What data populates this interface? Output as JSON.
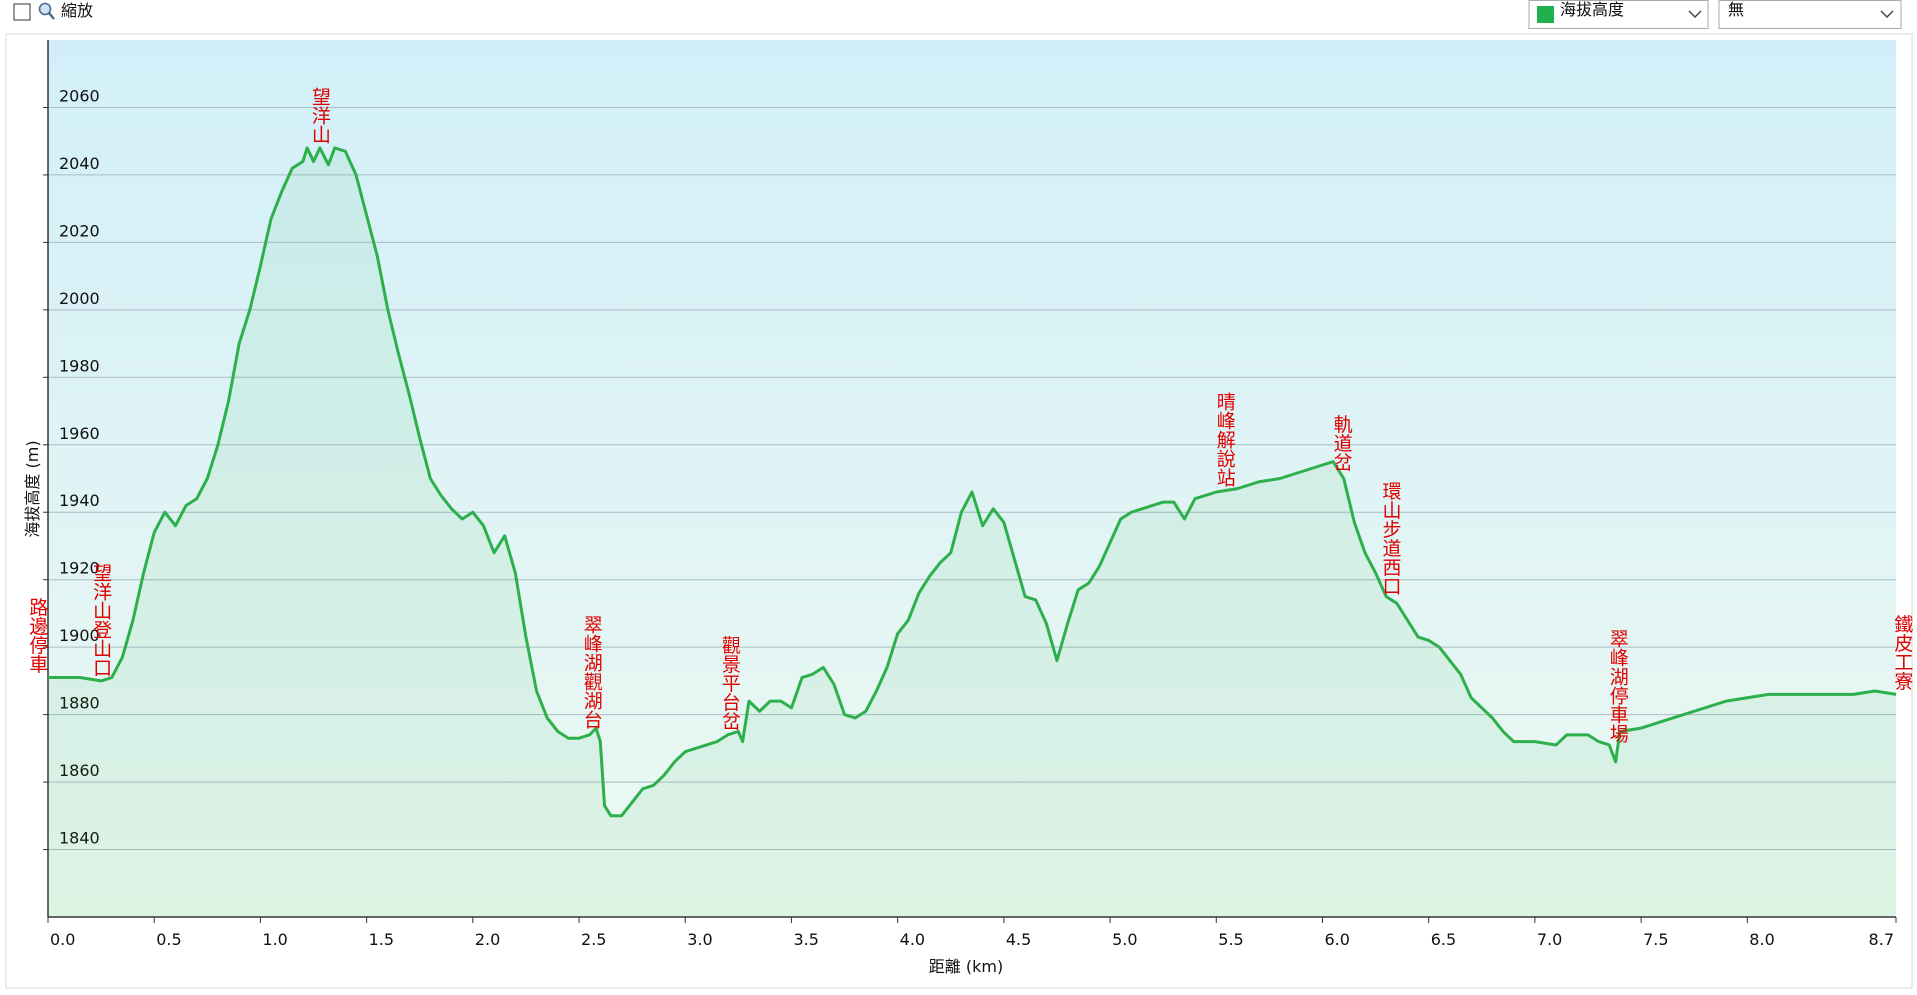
{
  "ui": {
    "zoom_label": "縮放",
    "overlay_select": "無"
  },
  "chart_data": {
    "type": "line",
    "xlabel": "距離 (km)",
    "ylabel": "海拔高度 (m)",
    "xlim": [
      0,
      8.7
    ],
    "ylim": [
      1820,
      2080
    ],
    "xticks": [
      {
        "value": 0,
        "label": "0.0"
      },
      0.5,
      {
        "value": 1,
        "label": "1.0"
      },
      1.5,
      {
        "value": 2,
        "label": "2.0"
      },
      2.5,
      {
        "value": 3,
        "label": "3.0"
      },
      3.5,
      {
        "value": 4,
        "label": "4.0"
      },
      4.5,
      {
        "value": 5,
        "label": "5.0"
      },
      5.5,
      {
        "value": 6,
        "label": "6.0"
      },
      6.5,
      {
        "value": 7,
        "label": "7.0"
      },
      7.5,
      {
        "value": 8,
        "label": "8.0"
      },
      8.7
    ],
    "yticks": [
      1840,
      1860,
      1880,
      1900,
      1920,
      1940,
      1960,
      1980,
      2000,
      2020,
      2040,
      2060
    ],
    "grid": true,
    "x": [
      0,
      0.15,
      0.25,
      0.3,
      0.35,
      0.4,
      0.45,
      0.5,
      0.55,
      0.6,
      0.65,
      0.7,
      0.75,
      0.8,
      0.85,
      0.9,
      0.95,
      1.0,
      1.05,
      1.1,
      1.15,
      1.2,
      1.22,
      1.25,
      1.28,
      1.32,
      1.35,
      1.4,
      1.45,
      1.5,
      1.55,
      1.6,
      1.65,
      1.7,
      1.75,
      1.8,
      1.85,
      1.9,
      1.95,
      2.0,
      2.05,
      2.1,
      2.15,
      2.2,
      2.25,
      2.3,
      2.35,
      2.4,
      2.45,
      2.5,
      2.55,
      2.58,
      2.6,
      2.62,
      2.65,
      2.7,
      2.75,
      2.8,
      2.85,
      2.9,
      2.95,
      3.0,
      3.05,
      3.1,
      3.15,
      3.2,
      3.25,
      3.27,
      3.3,
      3.35,
      3.4,
      3.45,
      3.5,
      3.55,
      3.6,
      3.65,
      3.7,
      3.75,
      3.8,
      3.85,
      3.9,
      3.95,
      4.0,
      4.05,
      4.1,
      4.15,
      4.2,
      4.25,
      4.3,
      4.35,
      4.4,
      4.45,
      4.5,
      4.55,
      4.6,
      4.65,
      4.7,
      4.75,
      4.8,
      4.85,
      4.9,
      4.95,
      5.0,
      5.05,
      5.1,
      5.15,
      5.2,
      5.25,
      5.3,
      5.35,
      5.4,
      5.5,
      5.6,
      5.7,
      5.8,
      5.9,
      6.0,
      6.05,
      6.1,
      6.15,
      6.2,
      6.25,
      6.3,
      6.35,
      6.4,
      6.45,
      6.5,
      6.55,
      6.6,
      6.65,
      6.7,
      6.75,
      6.8,
      6.85,
      6.9,
      6.95,
      7.0,
      7.1,
      7.15,
      7.2,
      7.25,
      7.3,
      7.35,
      7.38,
      7.4,
      7.5,
      7.6,
      7.7,
      7.8,
      7.9,
      8.0,
      8.1,
      8.2,
      8.3,
      8.4,
      8.5,
      8.6,
      8.7
    ],
    "series": [
      {
        "name": "海拔高度",
        "color": "#2db04b",
        "values": [
          1891,
          1891,
          1890,
          1891,
          1897,
          1908,
          1922,
          1934,
          1940,
          1936,
          1942,
          1944,
          1950,
          1960,
          1973,
          1990,
          2000,
          2013,
          2027,
          2035,
          2042,
          2044,
          2048,
          2044,
          2048,
          2043,
          2048,
          2047,
          2040,
          2028,
          2016,
          2000,
          1987,
          1975,
          1962,
          1950,
          1945,
          1941,
          1938,
          1940,
          1936,
          1928,
          1933,
          1922,
          1903,
          1887,
          1879,
          1875,
          1873,
          1873,
          1874,
          1876,
          1872,
          1853,
          1850,
          1850,
          1854,
          1858,
          1859,
          1862,
          1866,
          1869,
          1870,
          1871,
          1872,
          1874,
          1875,
          1872,
          1884,
          1881,
          1884,
          1884,
          1882,
          1891,
          1892,
          1894,
          1889,
          1880,
          1879,
          1881,
          1887,
          1894,
          1904,
          1908,
          1916,
          1921,
          1925,
          1928,
          1940,
          1946,
          1936,
          1941,
          1937,
          1926,
          1915,
          1914,
          1907,
          1896,
          1907,
          1917,
          1919,
          1924,
          1931,
          1938,
          1940,
          1941,
          1942,
          1943,
          1943,
          1938,
          1944,
          1946,
          1947,
          1949,
          1950,
          1952,
          1954,
          1955,
          1950,
          1937,
          1928,
          1922,
          1915,
          1913,
          1908,
          1903,
          1902,
          1900,
          1896,
          1892,
          1885,
          1882,
          1879,
          1875,
          1872,
          1872,
          1872,
          1871,
          1874,
          1874,
          1874,
          1872,
          1871,
          1866,
          1875,
          1876,
          1878,
          1880,
          1882,
          1884,
          1885,
          1886,
          1886,
          1886,
          1886,
          1886,
          1887,
          1886
        ]
      }
    ],
    "annotations": [
      {
        "text": "路邊停車",
        "x": -0.05
      },
      {
        "text": "望洋山登山口",
        "x": 0.25
      },
      {
        "text": "望洋山",
        "x": 1.28
      },
      {
        "text": "翠峰湖觀湖台",
        "x": 2.56
      },
      {
        "text": "觀景平台岔",
        "x": 3.21
      },
      {
        "text": "晴峰解說站",
        "x": 5.54
      },
      {
        "text": "軌道岔",
        "x": 6.09
      },
      {
        "text": "環山步道西口",
        "x": 6.32
      },
      {
        "text": "翠峰湖停車場",
        "x": 7.39
      },
      {
        "text": "鐵皮工寮",
        "x": 8.73
      }
    ]
  }
}
